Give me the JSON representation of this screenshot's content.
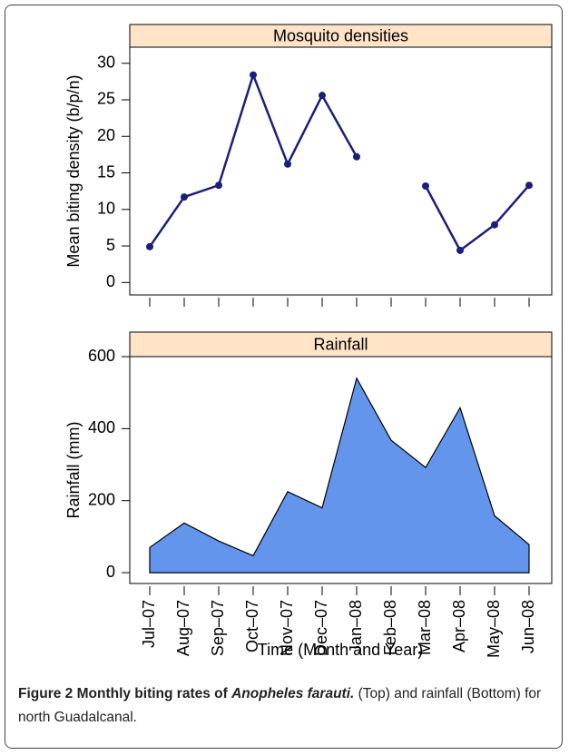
{
  "chart_data": [
    {
      "type": "line",
      "title": "Mosquito densities",
      "y_label": "Mean biting density (b/p/n)",
      "values": [
        4.9,
        11.7,
        13.3,
        28.4,
        16.2,
        25.6,
        17.2,
        null,
        13.2,
        4.4,
        7.9,
        13.3
      ],
      "color": "#1b1f7a",
      "strip_color": "#ffe4c8",
      "ylim": [
        -1.7,
        32.2
      ],
      "yticks": [
        0,
        5,
        10,
        15,
        20,
        25,
        30
      ]
    },
    {
      "type": "area",
      "title": "Rainfall",
      "y_label": "Rainfall (mm)",
      "x_label": "Time (Month and Year)",
      "categories": [
        "Jul–07",
        "Aug–07",
        "Sep–07",
        "Oct–07",
        "Nov–07",
        "Dec–07",
        "Jan–08",
        "Feb–08",
        "Mar–08",
        "Apr–08",
        "May–08",
        "Jun–08"
      ],
      "values": [
        70,
        138,
        88,
        47,
        225,
        180,
        540,
        368,
        292,
        458,
        158,
        78
      ],
      "color": "#6495ed",
      "strip_color": "#ffe4c8",
      "ylim": [
        -30,
        600
      ],
      "yticks": [
        0,
        200,
        400,
        600
      ]
    }
  ],
  "caption": {
    "label": "Figure 2 Monthly biting rates of ",
    "species": "Anopheles farauti.",
    "text": " (Top) and rainfall (Bottom) for north Guadalcanal."
  }
}
